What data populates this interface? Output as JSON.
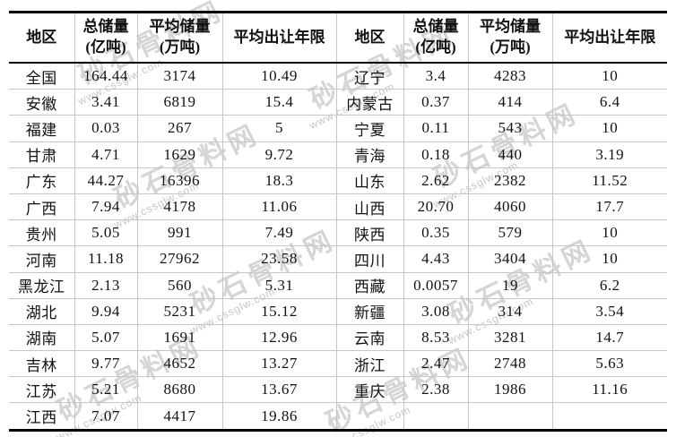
{
  "watermark": {
    "text": "砂石骨料网",
    "url": "www.cssglw.com",
    "color": "#b2b2b2"
  },
  "table": {
    "header": {
      "region": "地区",
      "total1": "总储量",
      "total2": "(亿吨)",
      "avg1": "平均储量",
      "avg2": "(万吨)",
      "years": "平均出让年限"
    },
    "rows": [
      [
        "全国",
        "164.44",
        "3174",
        "10.49",
        "辽宁",
        "3.4",
        "4283",
        "10"
      ],
      [
        "安徽",
        "3.41",
        "6819",
        "15.4",
        "内蒙古",
        "0.37",
        "414",
        "6.4"
      ],
      [
        "福建",
        "0.03",
        "267",
        "5",
        "宁夏",
        "0.11",
        "543",
        "10"
      ],
      [
        "甘肃",
        "4.71",
        "1629",
        "9.72",
        "青海",
        "0.18",
        "440",
        "3.19"
      ],
      [
        "广东",
        "44.27",
        "16396",
        "18.3",
        "山东",
        "2.62",
        "2382",
        "11.52"
      ],
      [
        "广西",
        "7.94",
        "4178",
        "11.06",
        "山西",
        "20.70",
        "4060",
        "17.7"
      ],
      [
        "贵州",
        "5.05",
        "991",
        "7.49",
        "陕西",
        "0.35",
        "579",
        "10"
      ],
      [
        "河南",
        "11.18",
        "27962",
        "23.58",
        "四川",
        "4.43",
        "3404",
        "10"
      ],
      [
        "黑龙江",
        "2.13",
        "560",
        "5.31",
        "西藏",
        "0.0057",
        "19",
        "6.2"
      ],
      [
        "湖北",
        "9.94",
        "5231",
        "15.12",
        "新疆",
        "3.08",
        "314",
        "3.54"
      ],
      [
        "湖南",
        "5.07",
        "1691",
        "12.96",
        "云南",
        "8.53",
        "3281",
        "14.7"
      ],
      [
        "吉林",
        "9.77",
        "4652",
        "13.27",
        "浙江",
        "2.47",
        "2748",
        "5.63"
      ],
      [
        "江苏",
        "5.21",
        "8680",
        "13.67",
        "重庆",
        "2.38",
        "1986",
        "11.16"
      ],
      [
        "江西",
        "7.07",
        "4417",
        "19.86",
        "",
        "",
        "",
        ""
      ]
    ]
  }
}
